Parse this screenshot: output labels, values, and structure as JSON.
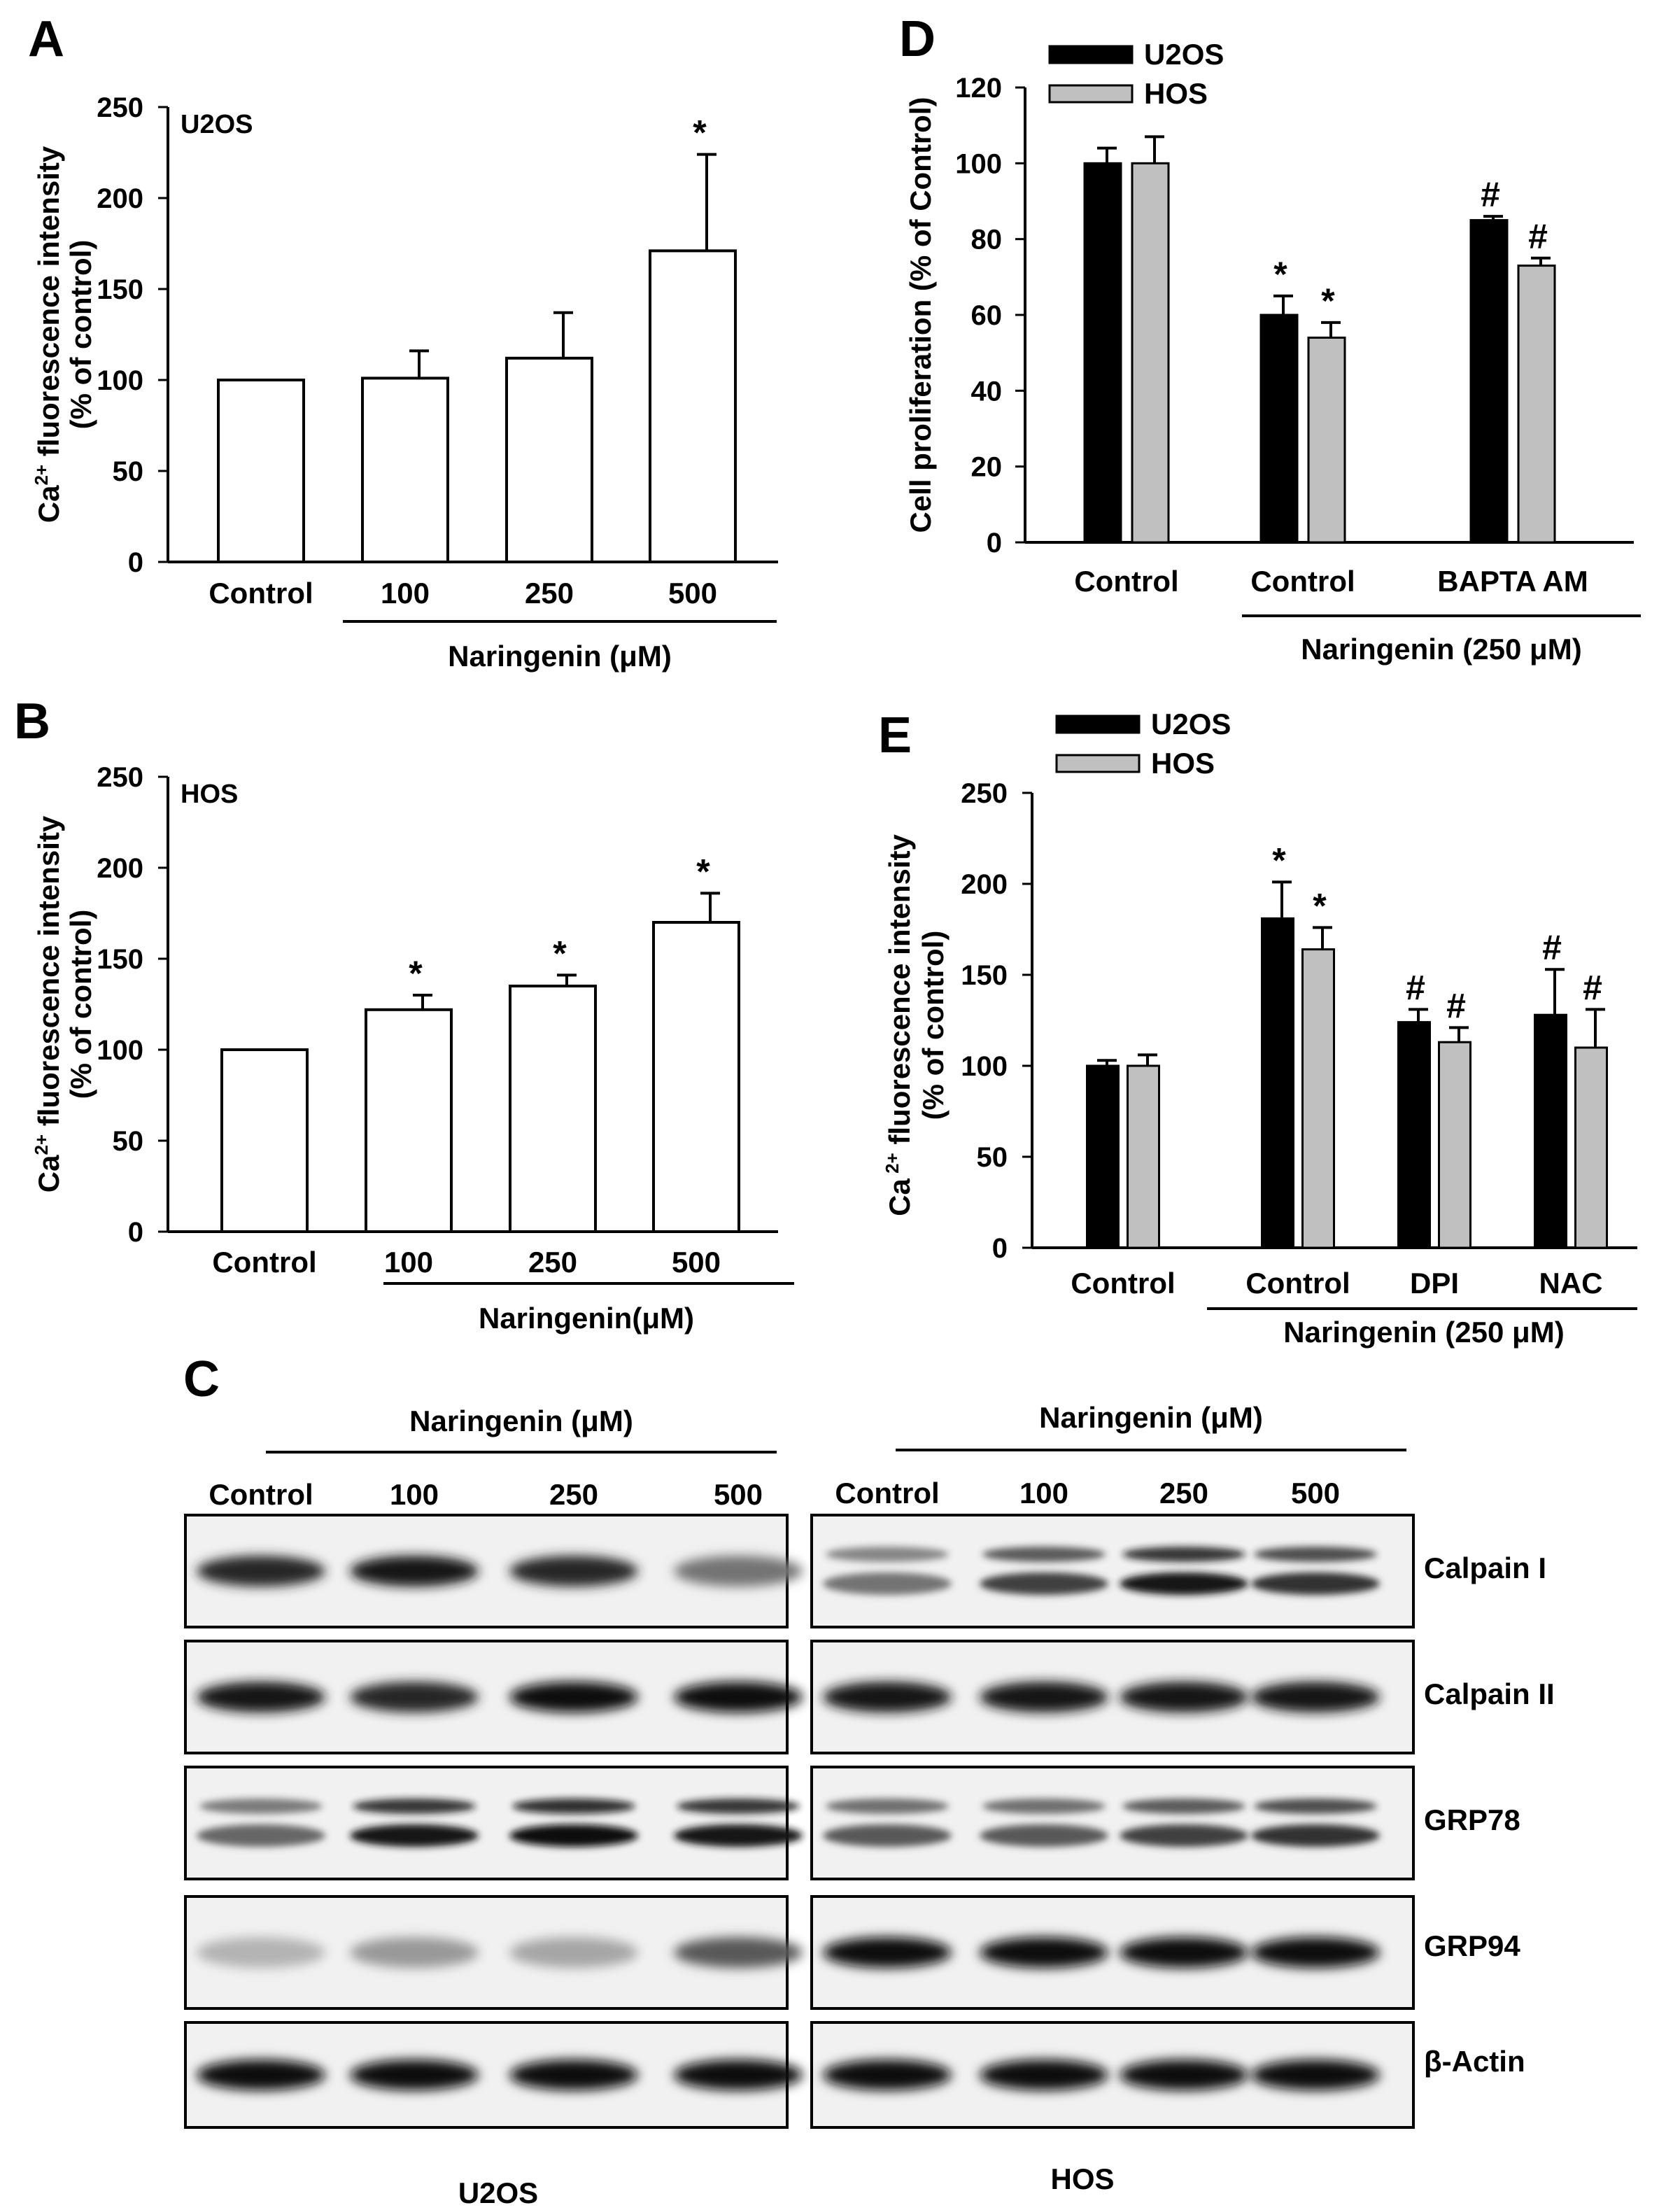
{
  "chart_data": [
    {
      "panel": "A",
      "type": "bar",
      "cell_label": "U2OS",
      "ylabel": "Ca2+ fluorescence intensity (% of control)",
      "ylabel_line1": "Ca",
      "ylabel_sup": "2+",
      "ylabel_line1_rest": " fluorescence intensity",
      "ylabel_line2": "(% of control)",
      "ylim": [
        0,
        250
      ],
      "yticks": [
        0,
        50,
        100,
        150,
        200,
        250
      ],
      "categories": [
        "Control",
        "100",
        "250",
        "500"
      ],
      "group_label": "Naringenin (μM)",
      "values": [
        100,
        101,
        112,
        171
      ],
      "errors": [
        0,
        15,
        25,
        53
      ],
      "significance": [
        "",
        "",
        "",
        "*"
      ]
    },
    {
      "panel": "B",
      "type": "bar",
      "cell_label": "HOS",
      "ylabel": "Ca2+ fluorescence intensity (% of control)",
      "ylabel_line1": "Ca",
      "ylabel_sup": "2+",
      "ylabel_line1_rest": " fluorescence intensity",
      "ylabel_line2": "(% of control)",
      "ylim": [
        0,
        250
      ],
      "yticks": [
        0,
        50,
        100,
        150,
        200,
        250
      ],
      "categories": [
        "Control",
        "100",
        "250",
        "500"
      ],
      "group_label": "Naringenin(μM)",
      "values": [
        100,
        122,
        135,
        170
      ],
      "errors": [
        0,
        8,
        6,
        16
      ],
      "significance": [
        "",
        "*",
        "*",
        "*"
      ]
    },
    {
      "panel": "D",
      "type": "bar",
      "ylabel": "Cell proliferation (% of Control)",
      "ylim": [
        0,
        120
      ],
      "yticks": [
        0,
        20,
        40,
        60,
        80,
        100,
        120
      ],
      "categories": [
        "Control",
        "Control",
        "BAPTA AM"
      ],
      "group_label": "Naringenin (250 μM)",
      "legend_position": "top-left",
      "series": [
        {
          "name": "U2OS",
          "color": "#000000",
          "values": [
            100,
            60,
            85
          ],
          "errors": [
            4,
            5,
            1
          ],
          "significance": [
            "",
            "*",
            "#"
          ]
        },
        {
          "name": "HOS",
          "color": "#c0c0c0",
          "values": [
            100,
            54,
            73
          ],
          "errors": [
            7,
            4,
            2
          ],
          "significance": [
            "",
            "*",
            "#"
          ]
        }
      ]
    },
    {
      "panel": "E",
      "type": "bar",
      "ylabel": "Ca 2+ fluorescence intensity (% of control)",
      "ylabel_line1": "Ca",
      "ylabel_sup": " 2+",
      "ylabel_line1_rest": " fluorescence intensity",
      "ylabel_line2": "(% of control)",
      "ylim": [
        0,
        250
      ],
      "yticks": [
        0,
        50,
        100,
        150,
        200,
        250
      ],
      "categories": [
        "Control",
        "Control",
        "DPI",
        "NAC"
      ],
      "group_label": "Naringenin (250 μM)",
      "legend_position": "top-left",
      "series": [
        {
          "name": "U2OS",
          "color": "#000000",
          "values": [
            100,
            181,
            124,
            128
          ],
          "errors": [
            3,
            20,
            7,
            25
          ],
          "significance": [
            "",
            "*",
            "#",
            "#"
          ]
        },
        {
          "name": "HOS",
          "color": "#c0c0c0",
          "values": [
            100,
            164,
            113,
            110
          ],
          "errors": [
            6,
            12,
            8,
            21
          ],
          "significance": [
            "",
            "*",
            "#",
            "#"
          ]
        }
      ]
    }
  ],
  "western_blot": {
    "panel": "C",
    "proteins": [
      "Calpain I",
      "Calpain II",
      "GRP78",
      "GRP94",
      "β-Actin"
    ],
    "left": {
      "cell_label": "U2OS",
      "group_label": "Naringenin (μM)",
      "lanes": [
        "Control",
        "100",
        "250",
        "500"
      ],
      "intensity": [
        [
          0.85,
          0.9,
          0.85,
          0.55
        ],
        [
          0.9,
          0.85,
          0.95,
          0.95
        ],
        [
          0.6,
          0.9,
          0.95,
          0.9
        ],
        [
          0.3,
          0.4,
          0.35,
          0.65
        ],
        [
          0.95,
          0.95,
          0.95,
          0.95
        ]
      ]
    },
    "right": {
      "cell_label": "HOS",
      "group_label": "Naringenin (μM)",
      "lanes": [
        "Control",
        "100",
        "250",
        "500"
      ],
      "intensity": [
        [
          0.55,
          0.75,
          0.9,
          0.8
        ],
        [
          0.9,
          0.9,
          0.9,
          0.9
        ],
        [
          0.65,
          0.65,
          0.75,
          0.8
        ],
        [
          0.95,
          0.95,
          0.95,
          0.95
        ],
        [
          0.95,
          0.95,
          0.95,
          0.95
        ]
      ]
    }
  },
  "panel_letters": [
    "A",
    "B",
    "C",
    "D",
    "E"
  ]
}
